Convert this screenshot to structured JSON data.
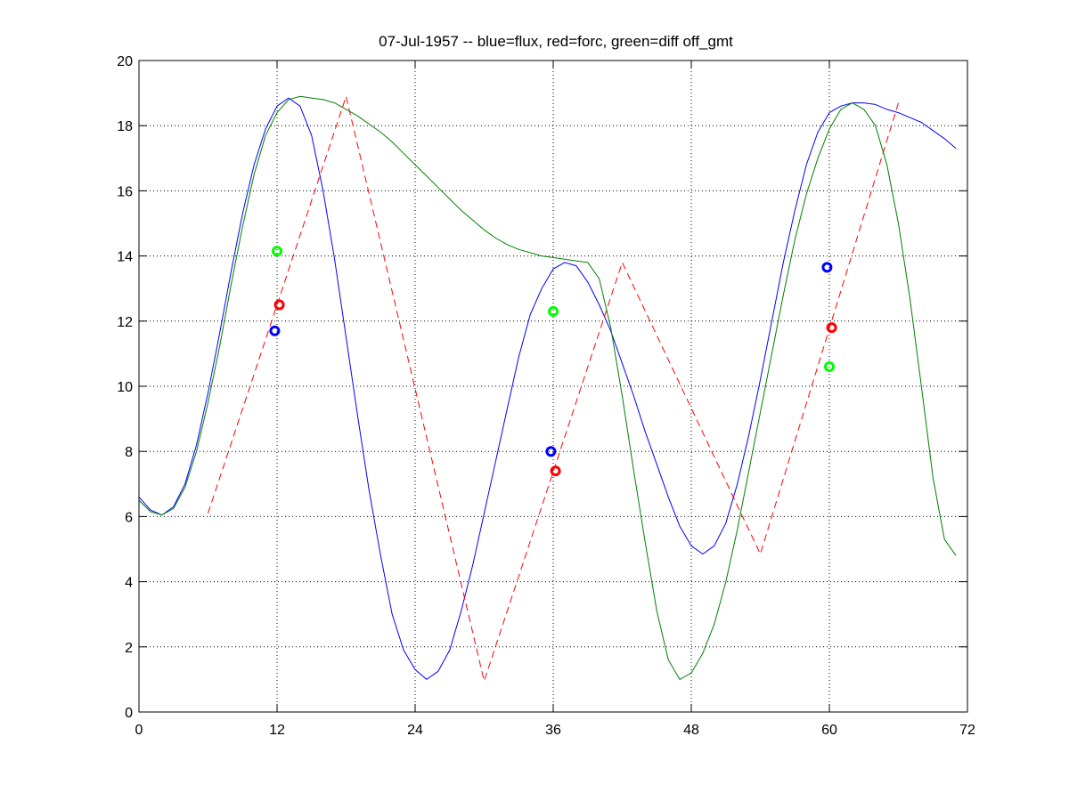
{
  "chart_data": {
    "type": "line",
    "title": "07-Jul-1957 -- blue=flux, red=forc, green=diff off_gmt",
    "xlabel": "",
    "ylabel": "",
    "xlim": [
      0,
      72
    ],
    "ylim": [
      0,
      20
    ],
    "xticks": [
      0,
      12,
      24,
      36,
      48,
      60,
      72
    ],
    "yticks": [
      0,
      2,
      4,
      6,
      8,
      10,
      12,
      14,
      16,
      18,
      20
    ],
    "grid": true,
    "legend": "none",
    "series": [
      {
        "color": "#0000ff",
        "style": "solid",
        "x": [
          0,
          1,
          2,
          3,
          4,
          5,
          6,
          7,
          8,
          9,
          10,
          11,
          12,
          13,
          14,
          15,
          16,
          17,
          18,
          19,
          20,
          21,
          22,
          23,
          24,
          25,
          26,
          27,
          28,
          29,
          30,
          31,
          32,
          33,
          34,
          35,
          36,
          37,
          38,
          39,
          40,
          41,
          42,
          43,
          44,
          45,
          46,
          47,
          48,
          49,
          50,
          51,
          52,
          53,
          54,
          55,
          56,
          57,
          58,
          59,
          60,
          61,
          62,
          63,
          64,
          65,
          66,
          67,
          68,
          69,
          70,
          71
        ],
        "y": [
          6.6,
          6.2,
          6.05,
          6.3,
          7.0,
          8.2,
          9.8,
          11.6,
          13.5,
          15.3,
          16.8,
          17.9,
          18.6,
          18.85,
          18.6,
          17.7,
          16.0,
          13.9,
          11.5,
          9.1,
          6.8,
          4.8,
          3.0,
          1.9,
          1.3,
          1.0,
          1.25,
          1.9,
          3.1,
          4.5,
          6.1,
          7.7,
          9.3,
          10.9,
          12.2,
          13.0,
          13.6,
          13.8,
          13.7,
          13.2,
          12.5,
          11.7,
          10.7,
          9.7,
          8.6,
          7.6,
          6.6,
          5.7,
          5.1,
          4.85,
          5.1,
          5.8,
          7.0,
          8.5,
          10.2,
          12.0,
          13.8,
          15.4,
          16.8,
          17.8,
          18.4,
          18.6,
          18.7,
          18.7,
          18.65,
          18.5,
          18.4,
          18.25,
          18.1,
          17.85,
          17.6,
          17.3
        ]
      },
      {
        "color": "#ff0000",
        "style": "dashed",
        "x": [
          6,
          18,
          30,
          42,
          54,
          66
        ],
        "y": [
          6.1,
          18.9,
          0.95,
          13.8,
          4.85,
          18.7
        ]
      },
      {
        "color": "#008000",
        "style": "solid",
        "x": [
          0,
          1,
          2,
          3,
          4,
          5,
          6,
          7,
          8,
          9,
          10,
          11,
          12,
          13,
          14,
          15,
          16,
          17,
          18,
          19,
          20,
          21,
          22,
          23,
          24,
          25,
          26,
          27,
          28,
          29,
          30,
          31,
          32,
          33,
          34,
          35,
          36,
          37,
          38,
          39,
          40,
          41,
          42,
          43,
          44,
          45,
          46,
          47,
          48,
          49,
          50,
          51,
          52,
          53,
          54,
          55,
          56,
          57,
          58,
          59,
          60,
          61,
          62,
          63,
          64,
          65,
          66,
          67,
          68,
          69,
          70,
          71
        ],
        "y": [
          6.5,
          6.15,
          6.05,
          6.25,
          6.9,
          8.0,
          9.5,
          11.2,
          13.1,
          14.9,
          16.5,
          17.7,
          18.4,
          18.8,
          18.9,
          18.85,
          18.8,
          18.7,
          18.5,
          18.3,
          18.05,
          17.8,
          17.5,
          17.15,
          16.8,
          16.45,
          16.1,
          15.75,
          15.4,
          15.1,
          14.8,
          14.55,
          14.35,
          14.2,
          14.1,
          14.0,
          13.95,
          13.9,
          13.85,
          13.8,
          13.3,
          11.8,
          9.7,
          7.4,
          5.2,
          3.1,
          1.6,
          1.0,
          1.2,
          1.8,
          2.7,
          4.0,
          5.6,
          7.4,
          9.2,
          11.0,
          12.8,
          14.5,
          15.9,
          17.0,
          17.9,
          18.5,
          18.7,
          18.5,
          18.0,
          16.8,
          15.0,
          12.7,
          10.0,
          7.2,
          5.3,
          4.8
        ]
      }
    ],
    "markers": [
      {
        "x": 11.8,
        "y": 11.7,
        "color": "#0000ff"
      },
      {
        "x": 12.2,
        "y": 12.5,
        "color": "#ff0000"
      },
      {
        "x": 12.0,
        "y": 14.15,
        "color": "#00ff00"
      },
      {
        "x": 35.8,
        "y": 8.0,
        "color": "#0000ff"
      },
      {
        "x": 36.2,
        "y": 7.4,
        "color": "#ff0000"
      },
      {
        "x": 36.0,
        "y": 12.3,
        "color": "#00ff00"
      },
      {
        "x": 59.8,
        "y": 13.65,
        "color": "#0000ff"
      },
      {
        "x": 60.2,
        "y": 11.8,
        "color": "#ff0000"
      },
      {
        "x": 60.0,
        "y": 10.6,
        "color": "#00ff00"
      }
    ]
  }
}
